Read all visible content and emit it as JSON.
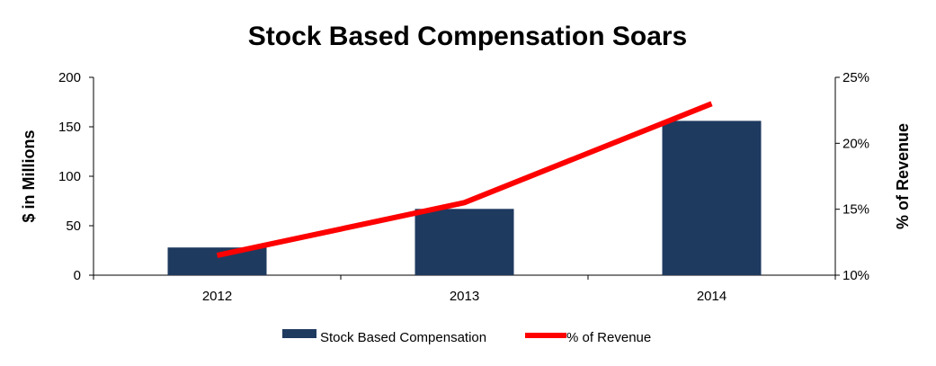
{
  "chart_data": {
    "type": "bar",
    "title": "Stock Based Compensation Soars",
    "categories": [
      "2012",
      "2013",
      "2014"
    ],
    "series": [
      {
        "name": "Stock Based Compensation",
        "type": "bar",
        "axis": "left",
        "color": "#1f3a5f",
        "values": [
          28,
          67,
          156
        ]
      },
      {
        "name": "% of Revenue",
        "type": "line",
        "axis": "right",
        "color": "#ff0000",
        "values": [
          11.5,
          15.5,
          23
        ]
      }
    ],
    "ylabel": "$ in Millions",
    "ylim": [
      0,
      200
    ],
    "yticks": [
      "0",
      "50",
      "100",
      "150",
      "200"
    ],
    "y2label": "% of Revenue",
    "y2lim": [
      10,
      25
    ],
    "y2ticks": [
      "10%",
      "15%",
      "20%",
      "25%"
    ],
    "grid": false,
    "legend": "bottom"
  }
}
